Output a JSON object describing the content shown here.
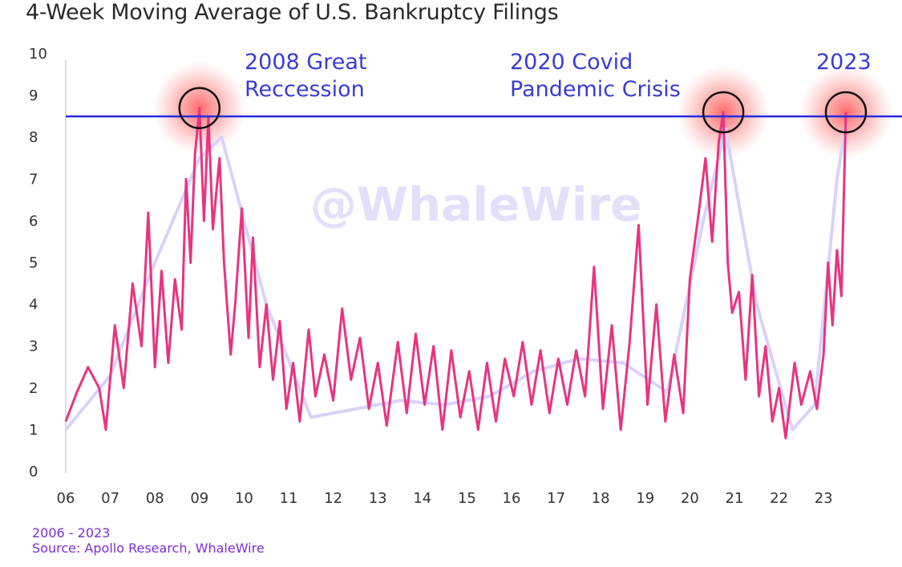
{
  "title": "4-Week Moving Average of U.S. Bankruptcy Filings",
  "watermark": "@WhaleWire",
  "footer": {
    "range": "2006 - 2023",
    "source": "Source: Apollo Research, WhaleWire"
  },
  "annotations": [
    {
      "line1": "2008 Great",
      "line2": "Reccession"
    },
    {
      "line1": "2020 Covid",
      "line2": "Pandemic Crisis"
    },
    {
      "line1": "2023",
      "line2": ""
    }
  ],
  "colors": {
    "series": "#e8347f",
    "trend": "#d9d2fa",
    "reference_line": "#2a2ae0",
    "highlight": "#ff4d4d",
    "annotation": "#3b3bd6",
    "footer": "#7a2fd6"
  },
  "chart_data": {
    "type": "line",
    "title": "4-Week Moving Average of U.S. Bankruptcy Filings",
    "xlabel": "",
    "ylabel": "",
    "ylim": [
      0,
      10
    ],
    "xlim": [
      2006,
      2024
    ],
    "x_tick_labels": [
      "06",
      "07",
      "08",
      "09",
      "10",
      "11",
      "12",
      "13",
      "14",
      "15",
      "16",
      "17",
      "18",
      "19",
      "20",
      "21",
      "22",
      "23"
    ],
    "y_tick_labels": [
      "0",
      "1",
      "2",
      "3",
      "4",
      "5",
      "6",
      "7",
      "8",
      "9",
      "10"
    ],
    "reference_line_y": 8.5,
    "highlighted_peaks": [
      {
        "x": 2009.0,
        "y": 8.7
      },
      {
        "x": 2020.75,
        "y": 8.6
      },
      {
        "x": 2023.5,
        "y": 8.6
      }
    ],
    "series": [
      {
        "values": [
          [
            2006.0,
            1.2
          ],
          [
            2006.25,
            1.9
          ],
          [
            2006.5,
            2.5
          ],
          [
            2006.75,
            2.0
          ],
          [
            2006.9,
            1.0
          ],
          [
            2007.1,
            3.5
          ],
          [
            2007.3,
            2.0
          ],
          [
            2007.5,
            4.5
          ],
          [
            2007.7,
            3.0
          ],
          [
            2007.85,
            6.2
          ],
          [
            2008.0,
            2.5
          ],
          [
            2008.15,
            4.8
          ],
          [
            2008.3,
            2.6
          ],
          [
            2008.45,
            4.6
          ],
          [
            2008.6,
            3.4
          ],
          [
            2008.7,
            7.0
          ],
          [
            2008.8,
            5.0
          ],
          [
            2008.9,
            7.6
          ],
          [
            2009.0,
            8.7
          ],
          [
            2009.1,
            6.0
          ],
          [
            2009.2,
            8.5
          ],
          [
            2009.3,
            5.8
          ],
          [
            2009.45,
            7.5
          ],
          [
            2009.55,
            5.0
          ],
          [
            2009.7,
            2.8
          ],
          [
            2009.8,
            4.0
          ],
          [
            2009.95,
            6.3
          ],
          [
            2010.1,
            3.2
          ],
          [
            2010.2,
            5.6
          ],
          [
            2010.35,
            2.5
          ],
          [
            2010.5,
            4.0
          ],
          [
            2010.65,
            2.2
          ],
          [
            2010.8,
            3.6
          ],
          [
            2010.95,
            1.5
          ],
          [
            2011.1,
            2.6
          ],
          [
            2011.25,
            1.2
          ],
          [
            2011.45,
            3.4
          ],
          [
            2011.6,
            1.8
          ],
          [
            2011.8,
            2.8
          ],
          [
            2012.0,
            1.7
          ],
          [
            2012.2,
            3.9
          ],
          [
            2012.4,
            2.2
          ],
          [
            2012.6,
            3.2
          ],
          [
            2012.8,
            1.5
          ],
          [
            2013.0,
            2.6
          ],
          [
            2013.2,
            1.1
          ],
          [
            2013.45,
            3.1
          ],
          [
            2013.65,
            1.4
          ],
          [
            2013.85,
            3.3
          ],
          [
            2014.05,
            1.6
          ],
          [
            2014.25,
            3.0
          ],
          [
            2014.45,
            1.0
          ],
          [
            2014.65,
            2.9
          ],
          [
            2014.85,
            1.3
          ],
          [
            2015.05,
            2.4
          ],
          [
            2015.25,
            1.0
          ],
          [
            2015.45,
            2.6
          ],
          [
            2015.65,
            1.2
          ],
          [
            2015.85,
            2.7
          ],
          [
            2016.05,
            1.8
          ],
          [
            2016.25,
            3.1
          ],
          [
            2016.45,
            1.6
          ],
          [
            2016.65,
            2.9
          ],
          [
            2016.85,
            1.4
          ],
          [
            2017.05,
            2.7
          ],
          [
            2017.25,
            1.6
          ],
          [
            2017.45,
            2.9
          ],
          [
            2017.65,
            1.8
          ],
          [
            2017.85,
            4.9
          ],
          [
            2018.05,
            1.5
          ],
          [
            2018.25,
            3.5
          ],
          [
            2018.45,
            1.0
          ],
          [
            2018.65,
            3.1
          ],
          [
            2018.85,
            5.9
          ],
          [
            2019.05,
            1.6
          ],
          [
            2019.25,
            4.0
          ],
          [
            2019.45,
            1.2
          ],
          [
            2019.65,
            2.8
          ],
          [
            2019.85,
            1.4
          ],
          [
            2020.0,
            4.6
          ],
          [
            2020.2,
            6.2
          ],
          [
            2020.35,
            7.5
          ],
          [
            2020.5,
            5.5
          ],
          [
            2020.65,
            7.9
          ],
          [
            2020.75,
            8.6
          ],
          [
            2020.85,
            5.0
          ],
          [
            2020.95,
            3.8
          ],
          [
            2021.1,
            4.3
          ],
          [
            2021.25,
            2.2
          ],
          [
            2021.4,
            4.7
          ],
          [
            2021.55,
            1.8
          ],
          [
            2021.7,
            3.0
          ],
          [
            2021.85,
            1.2
          ],
          [
            2022.0,
            2.0
          ],
          [
            2022.15,
            0.8
          ],
          [
            2022.35,
            2.6
          ],
          [
            2022.5,
            1.6
          ],
          [
            2022.7,
            2.4
          ],
          [
            2022.85,
            1.5
          ],
          [
            2023.0,
            2.8
          ],
          [
            2023.1,
            5.0
          ],
          [
            2023.2,
            3.5
          ],
          [
            2023.3,
            5.3
          ],
          [
            2023.4,
            4.2
          ],
          [
            2023.5,
            8.6
          ]
        ]
      },
      {
        "values": [
          [
            2006.0,
            1.0
          ],
          [
            2007.0,
            2.3
          ],
          [
            2008.0,
            5.0
          ],
          [
            2009.0,
            7.5
          ],
          [
            2009.5,
            8.0
          ],
          [
            2010.5,
            4.0
          ],
          [
            2011.5,
            1.3
          ],
          [
            2012.5,
            1.5
          ],
          [
            2013.5,
            1.7
          ],
          [
            2014.5,
            1.6
          ],
          [
            2015.5,
            1.8
          ],
          [
            2016.5,
            2.4
          ],
          [
            2017.5,
            2.7
          ],
          [
            2018.5,
            2.6
          ],
          [
            2019.5,
            1.9
          ],
          [
            2020.3,
            6.0
          ],
          [
            2020.8,
            8.2
          ],
          [
            2021.5,
            4.0
          ],
          [
            2022.3,
            1.0
          ],
          [
            2022.8,
            1.6
          ],
          [
            2023.3,
            7.0
          ],
          [
            2023.5,
            8.3
          ]
        ]
      }
    ]
  }
}
